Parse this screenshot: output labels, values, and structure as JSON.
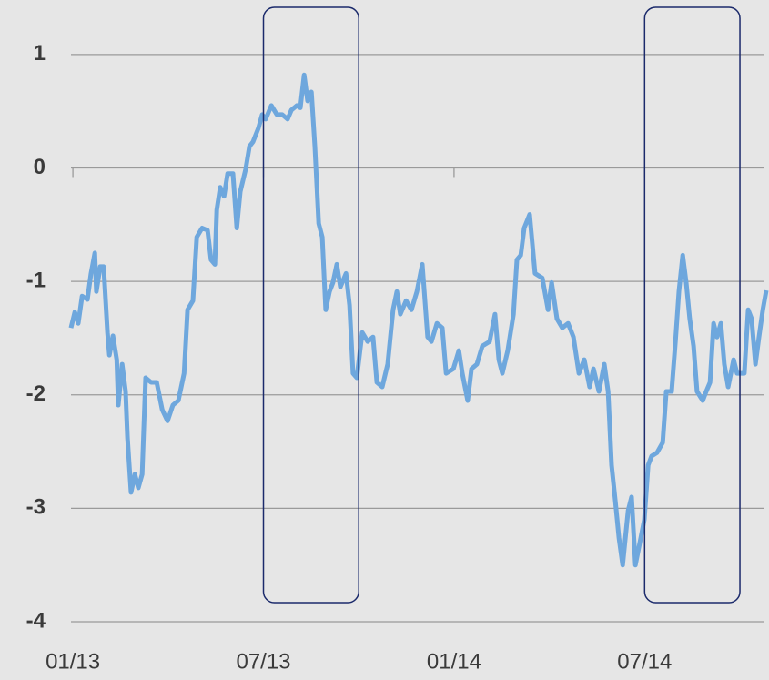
{
  "chart_data": {
    "type": "line",
    "x": [
      -0.06,
      0.06,
      0.17,
      0.29,
      0.46,
      0.57,
      0.69,
      0.74,
      0.86,
      0.97,
      1.09,
      1.15,
      1.26,
      1.38,
      1.43,
      1.55,
      1.66,
      1.72,
      1.83,
      1.95,
      2.06,
      2.18,
      2.29,
      2.46,
      2.64,
      2.81,
      2.98,
      3.15,
      3.32,
      3.5,
      3.61,
      3.78,
      3.9,
      4.07,
      4.24,
      4.35,
      4.47,
      4.53,
      4.64,
      4.76,
      4.87,
      5.04,
      5.16,
      5.27,
      5.44,
      5.56,
      5.67,
      5.84,
      5.96,
      6.07,
      6.25,
      6.42,
      6.59,
      6.76,
      6.88,
      7.05,
      7.16,
      7.28,
      7.39,
      7.51,
      7.62,
      7.74,
      7.85,
      7.96,
      8.08,
      8.19,
      8.31,
      8.42,
      8.6,
      8.71,
      8.82,
      8.94,
      9.11,
      9.28,
      9.45,
      9.57,
      9.74,
      9.91,
      10.08,
      10.2,
      10.31,
      10.49,
      10.66,
      10.83,
      11.0,
      11.17,
      11.29,
      11.46,
      11.63,
      11.75,
      11.98,
      12.15,
      12.26,
      12.43,
      12.55,
      12.72,
      12.89,
      13.12,
      13.29,
      13.41,
      13.52,
      13.69,
      13.87,
      13.98,
      14.1,
      14.21,
      14.38,
      14.55,
      14.78,
      14.96,
      15.07,
      15.24,
      15.41,
      15.59,
      15.76,
      15.93,
      16.1,
      16.27,
      16.39,
      16.56,
      16.73,
      16.85,
      16.96,
      17.08,
      17.19,
      17.31,
      17.48,
      17.59,
      17.71,
      17.88,
      17.99,
      18.11,
      18.22,
      18.39,
      18.57,
      18.68,
      18.85,
      18.97,
      19.08,
      19.2,
      19.31,
      19.42,
      19.54,
      19.65,
      19.83,
      19.94,
      20.06,
      20.17,
      20.28,
      20.4,
      20.51,
      20.63,
      20.8,
      20.91,
      21.14,
      21.26,
      21.37,
      21.49,
      21.6,
      21.72,
      21.83
    ],
    "values": [
      -1.41,
      -1.27,
      -1.37,
      -1.13,
      -1.16,
      -0.93,
      -0.75,
      -1.09,
      -0.87,
      -0.87,
      -1.45,
      -1.65,
      -1.48,
      -1.69,
      -2.09,
      -1.73,
      -1.97,
      -2.38,
      -2.86,
      -2.7,
      -2.82,
      -2.7,
      -1.85,
      -1.89,
      -1.89,
      -2.13,
      -2.23,
      -2.09,
      -2.05,
      -1.81,
      -1.25,
      -1.17,
      -0.61,
      -0.53,
      -0.55,
      -0.81,
      -0.85,
      -0.37,
      -0.17,
      -0.25,
      -0.05,
      -0.05,
      -0.53,
      -0.21,
      -0.01,
      0.19,
      0.23,
      0.35,
      0.47,
      0.43,
      0.55,
      0.47,
      0.47,
      0.43,
      0.51,
      0.55,
      0.53,
      0.82,
      0.59,
      0.67,
      0.19,
      -0.49,
      -0.61,
      -1.25,
      -1.09,
      -1.01,
      -0.85,
      -1.05,
      -0.93,
      -1.21,
      -1.81,
      -1.85,
      -1.45,
      -1.53,
      -1.49,
      -1.89,
      -1.93,
      -1.73,
      -1.25,
      -1.09,
      -1.29,
      -1.17,
      -1.25,
      -1.09,
      -0.85,
      -1.49,
      -1.53,
      -1.37,
      -1.41,
      -1.81,
      -1.77,
      -1.61,
      -1.81,
      -2.05,
      -1.77,
      -1.73,
      -1.57,
      -1.53,
      -1.29,
      -1.69,
      -1.81,
      -1.61,
      -1.29,
      -0.81,
      -0.77,
      -0.53,
      -0.41,
      -0.93,
      -0.97,
      -1.25,
      -1.01,
      -1.33,
      -1.41,
      -1.37,
      -1.49,
      -1.81,
      -1.69,
      -1.93,
      -1.77,
      -1.97,
      -1.73,
      -1.97,
      -2.62,
      -2.94,
      -3.26,
      -3.5,
      -3.02,
      -2.9,
      -3.5,
      -3.26,
      -3.1,
      -2.62,
      -2.54,
      -2.51,
      -2.42,
      -1.97,
      -1.97,
      -1.53,
      -1.09,
      -0.77,
      -1.01,
      -1.33,
      -1.57,
      -1.97,
      -2.05,
      -1.97,
      -1.89,
      -1.37,
      -1.49,
      -1.37,
      -1.73,
      -1.93,
      -1.69,
      -1.81,
      -1.81,
      -1.25,
      -1.33,
      -1.73,
      -1.49,
      -1.25,
      -1.08
    ],
    "color": "#6ea7dd",
    "xlim": [
      -0.06,
      21.83
    ],
    "xticks": [
      {
        "value": 0,
        "label": "01/13"
      },
      {
        "value": 6,
        "label": "07/13"
      },
      {
        "value": 12,
        "label": "01/14"
      },
      {
        "value": 18,
        "label": "07/14"
      }
    ],
    "ylim": [
      -4,
      1.44
    ],
    "yticks": [
      -4,
      -3,
      -2,
      -1,
      0,
      1
    ],
    "grid": true,
    "highlights": [
      [
        6,
        9
      ],
      [
        18,
        21
      ]
    ],
    "highlight_color": "#1b2a6b"
  }
}
